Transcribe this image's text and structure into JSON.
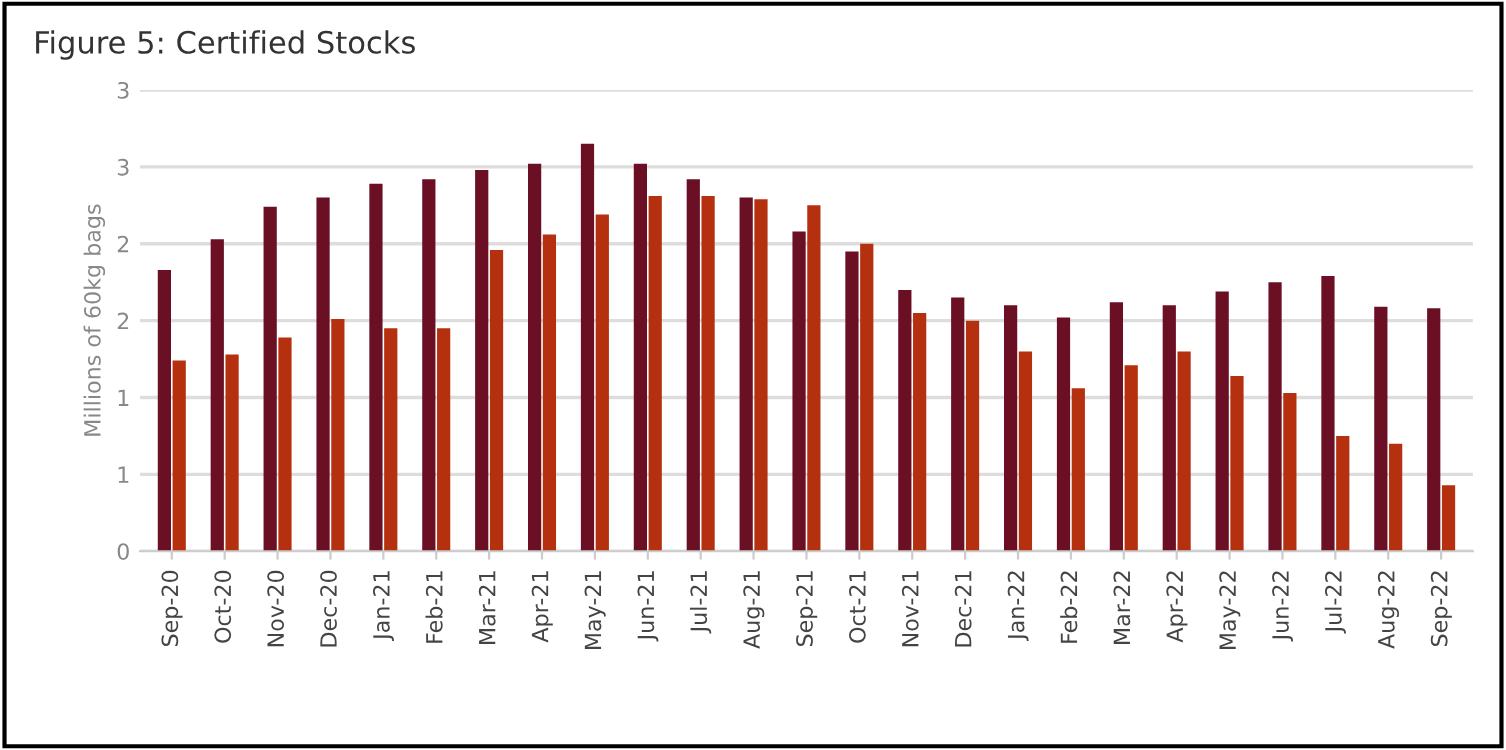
{
  "chart_data": {
    "type": "bar",
    "title": "Figure 5: Certified Stocks",
    "ylabel": "Millions of 60kg bags",
    "categories": [
      "Sep-20",
      "Oct-20",
      "Nov-20",
      "Dec-20",
      "Jan-21",
      "Feb-21",
      "Mar-21",
      "Apr-21",
      "May-21",
      "Jun-21",
      "Jul-21",
      "Aug-21",
      "Sep-21",
      "Oct-21",
      "Nov-21",
      "Dec-21",
      "Jan-22",
      "Feb-22",
      "Mar-22",
      "Apr-22",
      "May-22",
      "Jun-22",
      "Jul-22",
      "Aug-22",
      "Sep-22"
    ],
    "series": [
      {
        "color": "#6b0f24",
        "values": [
          1.83,
          2.03,
          2.24,
          2.3,
          2.39,
          2.42,
          2.48,
          2.52,
          2.65,
          2.52,
          2.42,
          2.3,
          2.08,
          1.95,
          1.7,
          1.65,
          1.6,
          1.52,
          1.62,
          1.6,
          1.69,
          1.75,
          1.79,
          1.59,
          1.58
        ]
      },
      {
        "color": "#b5300f",
        "values": [
          1.24,
          1.28,
          1.39,
          1.51,
          1.45,
          1.45,
          1.96,
          2.06,
          2.19,
          2.31,
          2.31,
          2.29,
          2.25,
          2.0,
          1.55,
          1.5,
          1.3,
          1.06,
          1.21,
          1.3,
          1.14,
          1.03,
          0.75,
          0.7,
          0.43
        ]
      }
    ],
    "ylim": [
      0,
      3.0
    ],
    "yticks": [
      {
        "value": 0,
        "label": "0"
      },
      {
        "value": 0.5,
        "label": "1"
      },
      {
        "value": 1.0,
        "label": "1"
      },
      {
        "value": 1.5,
        "label": "2"
      },
      {
        "value": 2.0,
        "label": "2"
      },
      {
        "value": 2.5,
        "label": "3"
      },
      {
        "value": 3.0,
        "label": "3"
      }
    ],
    "grid": "y"
  }
}
